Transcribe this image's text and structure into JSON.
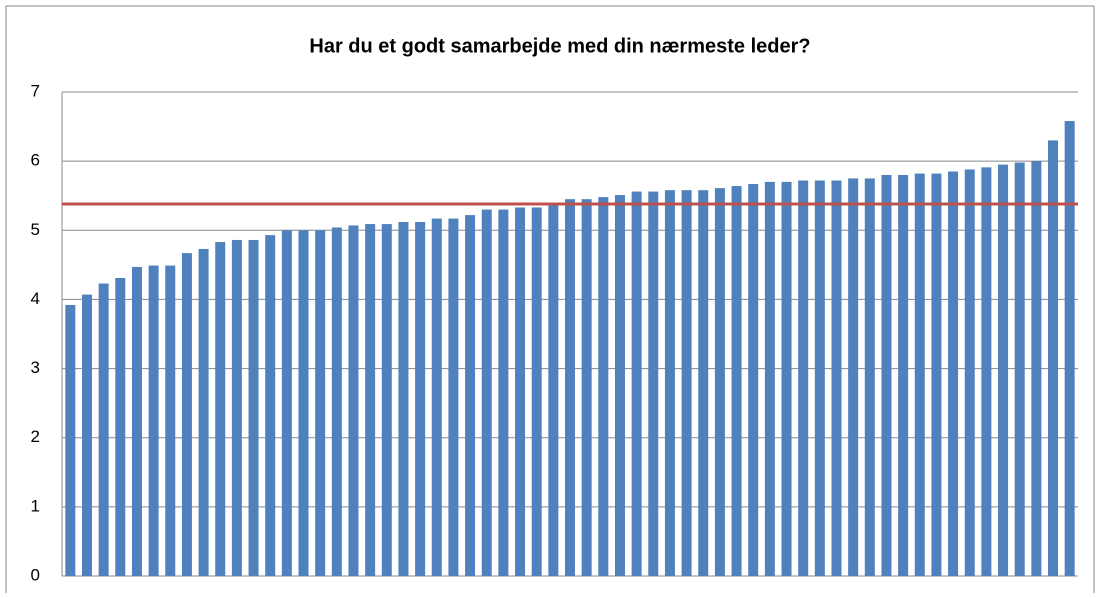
{
  "chart_data": {
    "type": "bar",
    "title": "Har du et godt samarbejde med din nærmeste leder?",
    "categories": [
      null,
      null,
      null,
      null,
      null,
      null,
      null,
      null,
      null,
      null,
      null,
      null,
      null,
      null,
      null,
      null,
      null,
      null,
      null,
      null,
      null,
      null,
      null,
      null,
      null,
      null,
      null,
      null,
      null,
      null,
      null,
      null,
      null,
      null,
      null,
      null,
      null,
      null,
      null,
      null,
      null,
      null,
      null,
      null,
      null,
      null,
      null,
      null,
      null,
      null,
      null,
      null,
      null,
      null,
      null,
      null,
      null,
      null,
      null,
      null,
      null
    ],
    "values": [
      3.92,
      4.07,
      4.23,
      4.31,
      4.47,
      4.49,
      4.49,
      4.67,
      4.73,
      4.83,
      4.86,
      4.86,
      4.93,
      5.0,
      5.0,
      5.0,
      5.04,
      5.07,
      5.09,
      5.09,
      5.12,
      5.12,
      5.17,
      5.17,
      5.22,
      5.3,
      5.3,
      5.33,
      5.33,
      5.37,
      5.45,
      5.45,
      5.48,
      5.51,
      5.56,
      5.56,
      5.58,
      5.58,
      5.58,
      5.61,
      5.64,
      5.67,
      5.7,
      5.7,
      5.72,
      5.72,
      5.72,
      5.75,
      5.75,
      5.8,
      5.8,
      5.82,
      5.82,
      5.85,
      5.88,
      5.91,
      5.95,
      5.98,
      6.0,
      6.3,
      6.58
    ],
    "color": "#4f81bd",
    "reference_line": 5.38,
    "reference_color": "#c0504d",
    "ylim": [
      0,
      7
    ],
    "yticks": [
      0,
      1,
      2,
      3,
      4,
      5,
      6,
      7
    ],
    "grid": true
  }
}
